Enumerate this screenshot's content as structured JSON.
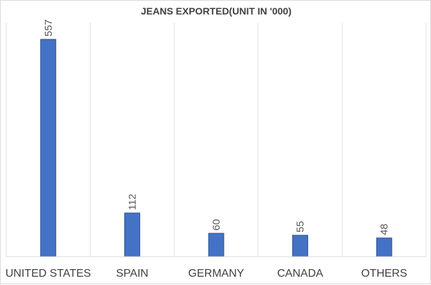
{
  "chart_data": {
    "type": "bar",
    "title": "JEANS EXPORTED(UNIT IN '000)",
    "categories": [
      "UNITED STATES",
      "SPAIN",
      "GERMANY",
      "CANADA",
      "OTHERS"
    ],
    "values": [
      557,
      112,
      60,
      55,
      48
    ],
    "xlabel": "",
    "ylabel": "",
    "ylim": [
      0,
      600
    ],
    "grid": true,
    "legend": "none",
    "data_labels": true,
    "colors": {
      "bar_fill": "#4472c4",
      "bar_stroke": "#2f528f",
      "grid": "#e0e0e0",
      "text": "#404040",
      "label": "#595959"
    }
  }
}
